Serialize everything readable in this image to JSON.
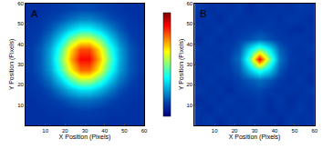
{
  "chart_data": [
    {
      "type": "heatmap",
      "label": "A",
      "color": "jet",
      "x_label": "X Position (Pixels)",
      "y_label": "Y Position (Pixels)",
      "x": [
        2.5,
        7.5,
        12.5,
        17.5,
        22.5,
        27.5,
        32.5,
        37.5,
        42.5,
        47.5,
        52.5,
        57.5
      ],
      "y": [
        2.5,
        7.5,
        12.5,
        17.5,
        22.5,
        27.5,
        32.5,
        37.5,
        42.5,
        47.5,
        52.5,
        57.5
      ],
      "cells": [
        [
          0.1,
          0.1,
          0.1,
          0.1,
          0.11,
          0.11,
          0.11,
          0.11,
          0.1,
          0.1,
          0.1,
          0.1
        ],
        [
          0.1,
          0.1,
          0.11,
          0.11,
          0.12,
          0.13,
          0.13,
          0.12,
          0.11,
          0.11,
          0.1,
          0.1
        ],
        [
          0.1,
          0.11,
          0.12,
          0.14,
          0.17,
          0.19,
          0.19,
          0.17,
          0.14,
          0.12,
          0.11,
          0.1
        ],
        [
          0.11,
          0.12,
          0.15,
          0.21,
          0.28,
          0.33,
          0.33,
          0.28,
          0.21,
          0.15,
          0.12,
          0.11
        ],
        [
          0.11,
          0.14,
          0.2,
          0.31,
          0.45,
          0.55,
          0.55,
          0.45,
          0.31,
          0.2,
          0.14,
          0.11
        ],
        [
          0.12,
          0.16,
          0.25,
          0.42,
          0.62,
          0.77,
          0.77,
          0.62,
          0.42,
          0.25,
          0.16,
          0.12
        ],
        [
          0.12,
          0.16,
          0.27,
          0.47,
          0.7,
          0.87,
          0.87,
          0.7,
          0.47,
          0.27,
          0.16,
          0.12
        ],
        [
          0.12,
          0.16,
          0.26,
          0.43,
          0.65,
          0.8,
          0.8,
          0.65,
          0.43,
          0.26,
          0.16,
          0.12
        ],
        [
          0.11,
          0.14,
          0.21,
          0.33,
          0.49,
          0.59,
          0.59,
          0.49,
          0.33,
          0.21,
          0.14,
          0.11
        ],
        [
          0.11,
          0.12,
          0.16,
          0.23,
          0.31,
          0.37,
          0.37,
          0.31,
          0.23,
          0.16,
          0.12,
          0.11
        ],
        [
          0.1,
          0.11,
          0.13,
          0.15,
          0.19,
          0.22,
          0.22,
          0.19,
          0.15,
          0.13,
          0.11,
          0.1
        ],
        [
          0.1,
          0.1,
          0.11,
          0.12,
          0.13,
          0.14,
          0.14,
          0.13,
          0.12,
          0.11,
          0.1,
          0.1
        ]
      ],
      "color_range": [
        0,
        1
      ],
      "xlim": [
        0,
        60
      ],
      "ylim": [
        0,
        60
      ],
      "xticks": [
        10,
        20,
        30,
        40,
        50,
        60
      ],
      "yticks": [
        10,
        20,
        30,
        40,
        50,
        60
      ]
    },
    {
      "type": "heatmap",
      "label": "B",
      "color": "jet",
      "x_label": "X Position (Pixels)",
      "y_label": "Y Position (Pixels)",
      "x": [
        2.5,
        7.5,
        12.5,
        17.5,
        22.5,
        27.5,
        32.5,
        37.5,
        42.5,
        47.5,
        52.5,
        57.5
      ],
      "y": [
        2.5,
        7.5,
        12.5,
        17.5,
        22.5,
        27.5,
        32.5,
        37.5,
        42.5,
        47.5,
        52.5,
        57.5
      ],
      "cells": [
        [
          0.1,
          0.12,
          0.09,
          0.11,
          0.1,
          0.12,
          0.1,
          0.11,
          0.09,
          0.12,
          0.1,
          0.11
        ],
        [
          0.11,
          0.09,
          0.12,
          0.1,
          0.11,
          0.1,
          0.12,
          0.09,
          0.11,
          0.1,
          0.12,
          0.1
        ],
        [
          0.09,
          0.11,
          0.1,
          0.12,
          0.1,
          0.11,
          0.12,
          0.1,
          0.12,
          0.09,
          0.11,
          0.1
        ],
        [
          0.12,
          0.1,
          0.11,
          0.09,
          0.12,
          0.13,
          0.14,
          0.12,
          0.1,
          0.11,
          0.1,
          0.12
        ],
        [
          0.1,
          0.12,
          0.1,
          0.11,
          0.13,
          0.16,
          0.19,
          0.16,
          0.12,
          0.1,
          0.12,
          0.09
        ],
        [
          0.11,
          0.1,
          0.12,
          0.12,
          0.16,
          0.3,
          0.42,
          0.32,
          0.16,
          0.11,
          0.1,
          0.11
        ],
        [
          0.1,
          0.11,
          0.1,
          0.13,
          0.19,
          0.45,
          0.88,
          0.5,
          0.2,
          0.12,
          0.11,
          0.1
        ],
        [
          0.12,
          0.1,
          0.11,
          0.12,
          0.16,
          0.33,
          0.48,
          0.35,
          0.17,
          0.12,
          0.1,
          0.12
        ],
        [
          0.09,
          0.12,
          0.1,
          0.11,
          0.13,
          0.15,
          0.18,
          0.15,
          0.12,
          0.11,
          0.12,
          0.1
        ],
        [
          0.11,
          0.1,
          0.12,
          0.1,
          0.11,
          0.12,
          0.13,
          0.12,
          0.11,
          0.1,
          0.09,
          0.11
        ],
        [
          0.1,
          0.11,
          0.09,
          0.12,
          0.1,
          0.11,
          0.1,
          0.12,
          0.1,
          0.12,
          0.11,
          0.1
        ],
        [
          0.12,
          0.1,
          0.11,
          0.1,
          0.12,
          0.09,
          0.11,
          0.1,
          0.11,
          0.1,
          0.12,
          0.11
        ]
      ],
      "color_range": [
        0,
        1
      ],
      "xlim": [
        0,
        60
      ],
      "ylim": [
        0,
        60
      ],
      "xticks": [
        10,
        20,
        30,
        40,
        50,
        60
      ],
      "yticks": [
        10,
        20,
        30,
        40,
        50,
        60
      ]
    }
  ]
}
